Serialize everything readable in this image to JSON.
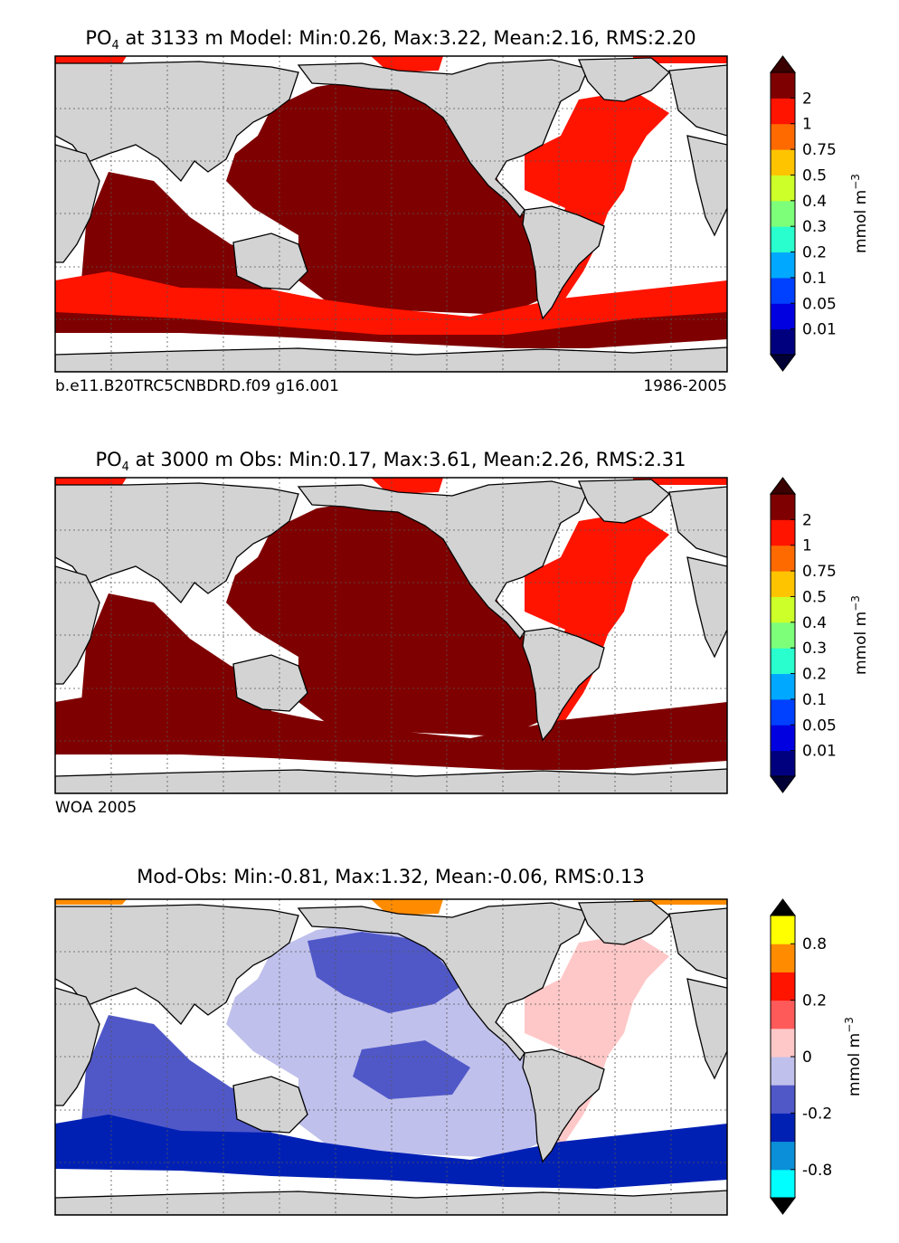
{
  "chart_data": [
    {
      "type": "heatmap",
      "name": "model",
      "title_var": "PO",
      "title_sub": "4",
      "title_rest": " at 3133 m Model: Min:0.26, Max:3.22, Mean:2.16, RMS:2.20",
      "left_label": "b.e11.B20TRC5CNBDRD.f09 g16.001",
      "right_label": "1986-2005",
      "colorbar": {
        "units": "mmol m",
        "units_exp": "−3",
        "colors": [
          "#00007f",
          "#0000e0",
          "#0040ff",
          "#00a8ff",
          "#29ffce",
          "#7dff7a",
          "#cdff29",
          "#ffc400",
          "#ff6a00",
          "#ff1400",
          "#7f0000"
        ],
        "ticks": [
          "0.01",
          "0.05",
          "0.1",
          "0.2",
          "0.3",
          "0.4",
          "0.5",
          "0.75",
          "1",
          "2"
        ],
        "under": "#000035",
        "over": "#3a0000"
      },
      "fills": {
        "deep": "#7f0000",
        "atlantic": "#ff1400",
        "southern": "#ff1400"
      }
    },
    {
      "type": "heatmap",
      "name": "obs",
      "title_var": "PO",
      "title_sub": "4",
      "title_rest": " at 3000 m Obs: Min:0.17, Max:3.61, Mean:2.26, RMS:2.31",
      "left_label": "WOA 2005",
      "right_label": "",
      "colorbar": {
        "units": "mmol m",
        "units_exp": "−3",
        "colors": [
          "#00007f",
          "#0000e0",
          "#0040ff",
          "#00a8ff",
          "#29ffce",
          "#7dff7a",
          "#cdff29",
          "#ffc400",
          "#ff6a00",
          "#ff1400",
          "#7f0000"
        ],
        "ticks": [
          "0.01",
          "0.05",
          "0.1",
          "0.2",
          "0.3",
          "0.4",
          "0.5",
          "0.75",
          "1",
          "2"
        ],
        "under": "#000035",
        "over": "#3a0000"
      },
      "fills": {
        "deep": "#7f0000",
        "atlantic": "#ff1400",
        "southern": "#7f0000"
      }
    },
    {
      "type": "heatmap",
      "name": "diff",
      "title_var": "",
      "title_sub": "",
      "title_rest": "Mod-Obs: Min:-0.81, Max:1.32, Mean:-0.06, RMS:0.13",
      "left_label": "",
      "right_label": "",
      "colorbar": {
        "units": "mmol m",
        "units_exp": "−3",
        "colors": [
          "#00ffff",
          "#0b8fd8",
          "#0020b4",
          "#5058c8",
          "#c0c0ec",
          "#ffc8c8",
          "#ff5a5a",
          "#ff1400",
          "#ff8c00",
          "#ffff00"
        ],
        "ticks": [
          "-0.8",
          "",
          "-0.2",
          "",
          "0",
          "",
          "0.2",
          "",
          "0.8"
        ],
        "under": "#000000",
        "over": "#000000"
      },
      "fills": {
        "deep": "#5058c8",
        "atlantic": "#ffc8c8",
        "southern": "#0020b4"
      }
    }
  ],
  "colors": {
    "land": "#d3d3d3",
    "nodata": "#ffffff",
    "grid": "#555555"
  }
}
